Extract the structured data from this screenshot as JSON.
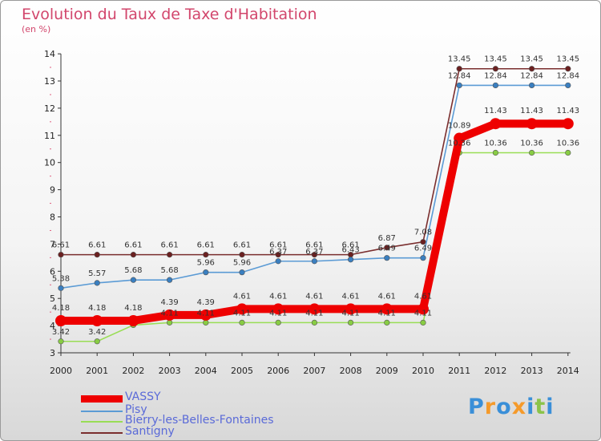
{
  "title": "Evolution du Taux de Taxe d'Habitation",
  "subtitle": "(en %)",
  "chart_data": {
    "type": "line",
    "categories": [
      "2000",
      "2001",
      "2002",
      "2003",
      "2004",
      "2005",
      "2006",
      "2007",
      "2008",
      "2009",
      "2010",
      "2011",
      "2012",
      "2013",
      "2014"
    ],
    "ylim": [
      3,
      14
    ],
    "yticks": [
      3,
      4,
      5,
      6,
      7,
      8,
      9,
      10,
      11,
      12,
      13,
      14
    ],
    "grid": false,
    "legend_position": "bottom-left",
    "series": [
      {
        "name": "Santigny",
        "color": "#7a2e2e",
        "marker": "#6b2020",
        "values": [
          6.61,
          6.61,
          6.61,
          6.61,
          6.61,
          6.61,
          6.61,
          6.61,
          6.61,
          6.87,
          7.08,
          13.45,
          13.45,
          13.45,
          13.45
        ],
        "labels": [
          "6.61",
          "6.61",
          "6.61",
          "6.61",
          "6.61",
          "6.61",
          "6.61",
          "6.61",
          "6.61",
          "6.87",
          "7.08",
          "13.45",
          "13.45",
          "13.45",
          "13.45"
        ]
      },
      {
        "name": "Pisy",
        "color": "#5b9bd5",
        "marker": "#3a7fc0",
        "values": [
          5.38,
          5.57,
          5.68,
          5.68,
          5.96,
          5.96,
          6.37,
          6.37,
          6.43,
          6.49,
          6.49,
          12.84,
          12.84,
          12.84,
          12.84
        ],
        "labels": [
          "5.38",
          "5.57",
          "5.68",
          "5.68",
          "5.96",
          "5.96",
          "6.37",
          "6.37",
          "6.43",
          "6.49",
          "6.49",
          "12.84",
          "12.84",
          "12.84",
          "12.84"
        ]
      },
      {
        "name": "Bierry-les-Belles-Fontaines",
        "color": "#99dd55",
        "marker": "#88cc44",
        "values": [
          3.42,
          3.42,
          4.02,
          4.11,
          4.11,
          4.11,
          4.11,
          4.11,
          4.11,
          4.11,
          4.11,
          10.36,
          10.36,
          10.36,
          10.36
        ],
        "labels": [
          "3.42",
          "3.42",
          "",
          "4.11",
          "4.11",
          "4.11",
          "4.11",
          "4.11",
          "4.11",
          "4.11",
          "4.11",
          "10.36",
          "10.36",
          "10.36",
          "10.36"
        ]
      },
      {
        "name": "VASSY",
        "color": "#ee0000",
        "marker": "#ee0000",
        "values": [
          4.18,
          4.18,
          4.18,
          4.39,
          4.39,
          4.61,
          4.61,
          4.61,
          4.61,
          4.61,
          4.61,
          10.89,
          11.43,
          11.43,
          11.43
        ],
        "labels": [
          "4.18",
          "4.18",
          "4.18",
          "4.39",
          "4.39",
          "4.61",
          "4.61",
          "4.61",
          "4.61",
          "4.61",
          "4.61",
          "10.89",
          "11.43",
          "11.43",
          "11.43"
        ]
      }
    ]
  },
  "legend": [
    {
      "name": "VASSY",
      "color": "#ee0000"
    },
    {
      "name": "Pisy",
      "color": "#5b9bd5"
    },
    {
      "name": "Bierry-les-Belles-Fontaines",
      "color": "#99dd55"
    },
    {
      "name": "Santigny",
      "color": "#7a2e2e"
    }
  ],
  "logo": {
    "text": "Proxiti"
  }
}
